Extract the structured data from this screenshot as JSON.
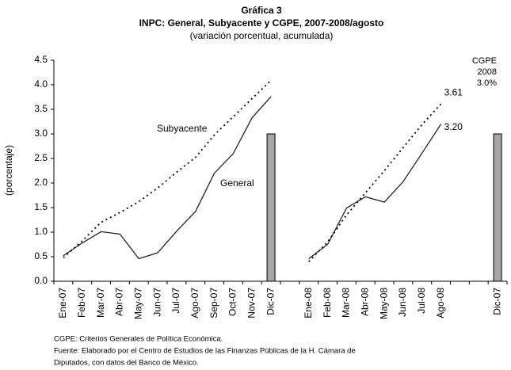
{
  "chart_data": {
    "type": "line",
    "title": "Gráfica 3",
    "subtitle": "INPC: General, Subyacente y CGPE, 2007-2008/agosto",
    "subtitle2": "(variación porcentual, acumulada)",
    "y_label": "(porcentaje)",
    "categories": [
      "Ene-07",
      "Feb-07",
      "Mar-07",
      "Abr-07",
      "May-07",
      "Jun-07",
      "Jul-07",
      "Ago-07",
      "Sep-07",
      "Oct-07",
      "Nov-07",
      "Dic-07",
      null,
      "Ene-08",
      "Feb-08",
      "Mar-08",
      "Abr-08",
      "May-08",
      "Jun-08",
      "Jul-08",
      "Ago-08",
      null,
      null,
      "Dic-07"
    ],
    "series": [
      {
        "name": "General",
        "color": "#222222",
        "dash": "solid",
        "values": [
          0.52,
          0.78,
          1.01,
          0.96,
          0.46,
          0.58,
          1.02,
          1.42,
          2.2,
          2.6,
          3.33,
          3.76,
          null,
          0.46,
          0.75,
          1.49,
          1.72,
          1.61,
          2.03,
          2.61,
          3.2,
          null,
          null,
          null
        ],
        "value_labels": [
          null,
          null,
          null,
          null,
          null,
          null,
          null,
          null,
          null,
          null,
          null,
          null,
          null,
          null,
          null,
          null,
          null,
          null,
          null,
          null,
          "3.20",
          null,
          null,
          null
        ]
      },
      {
        "name": "Subyacente",
        "color": "#000000",
        "dash": "dotted",
        "values": [
          0.48,
          0.82,
          1.2,
          1.4,
          1.62,
          1.9,
          2.22,
          2.52,
          2.98,
          3.35,
          3.72,
          4.09,
          null,
          0.4,
          0.8,
          1.35,
          1.8,
          2.25,
          2.72,
          3.19,
          3.61,
          null,
          null,
          null
        ],
        "value_labels": [
          null,
          null,
          null,
          null,
          null,
          null,
          null,
          null,
          null,
          null,
          null,
          null,
          null,
          null,
          null,
          null,
          null,
          null,
          null,
          null,
          "3.61",
          null,
          null,
          null
        ]
      }
    ],
    "bars": {
      "color": "#a6a6a6",
      "values": [
        null,
        null,
        null,
        null,
        null,
        null,
        null,
        null,
        null,
        null,
        null,
        3.0,
        null,
        null,
        null,
        null,
        null,
        null,
        null,
        null,
        null,
        null,
        null,
        3.0
      ]
    },
    "annotations": [
      "CGPE",
      "2008",
      "3.0%"
    ],
    "ylim": [
      0,
      4.5
    ],
    "yticks": [
      {
        "value": 0,
        "label": "0.0"
      },
      {
        "value": 0.5,
        "label": "0.5"
      },
      {
        "value": 1,
        "label": "1.0"
      },
      {
        "value": 1.5,
        "label": "1.5"
      },
      {
        "value": 2,
        "label": "2.0"
      },
      {
        "value": 2.5,
        "label": "2.5"
      },
      {
        "value": 3,
        "label": "3.0"
      },
      {
        "value": 3.5,
        "label": "3.5"
      },
      {
        "value": 4,
        "label": "4.0"
      },
      {
        "value": 4.5,
        "label": "4.5"
      }
    ],
    "notes": [
      "CGPE: Criterios Generales de Política Económica.",
      "Fuente: Elaborado por el Centro de Estudios de las Finanzas Públicas de la H. Cámara de",
      "Diputados, con  datos del Banco de México."
    ]
  }
}
